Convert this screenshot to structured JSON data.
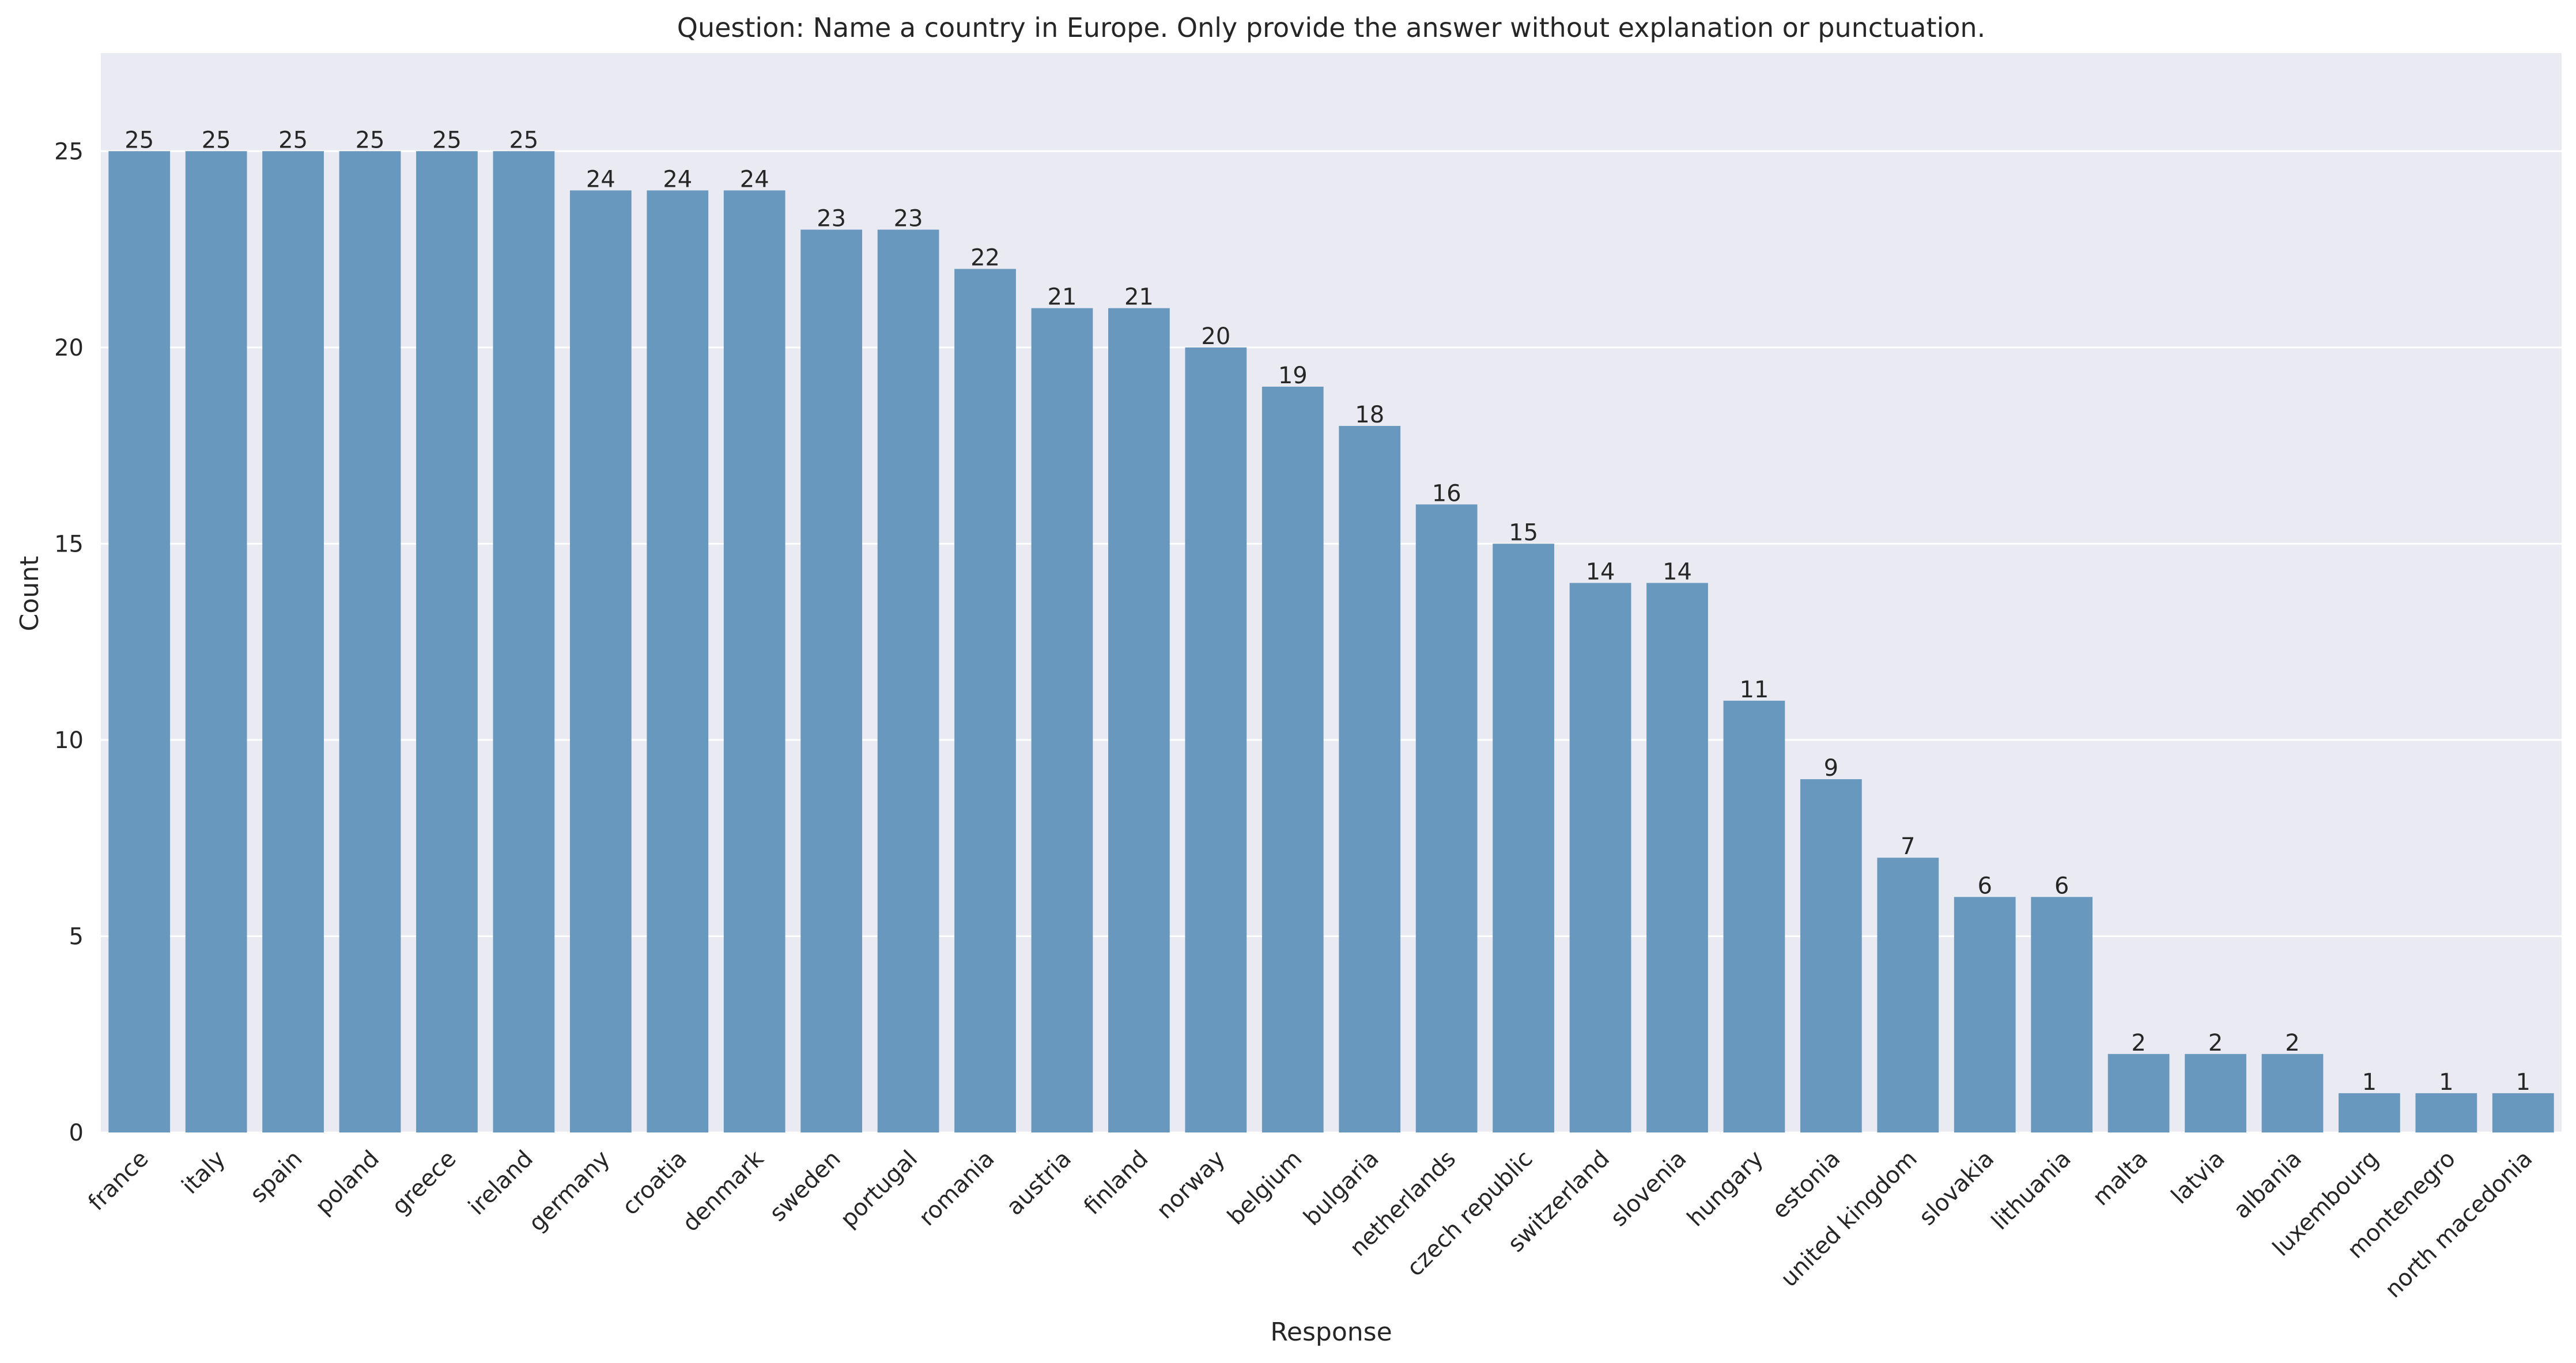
{
  "chart_data": {
    "type": "bar",
    "title": "Question: Name a country in Europe. Only provide the answer without explanation or punctuation.",
    "xlabel": "Response",
    "ylabel": "Count",
    "ylim": [
      0,
      27.5
    ],
    "yticks": [
      0,
      5,
      10,
      15,
      20,
      25
    ],
    "grid": true,
    "legend": "none",
    "bar_color": "#6998be",
    "background_color": "#eaeaf2",
    "categories": [
      "france",
      "italy",
      "spain",
      "poland",
      "greece",
      "ireland",
      "germany",
      "croatia",
      "denmark",
      "sweden",
      "portugal",
      "romania",
      "austria",
      "finland",
      "norway",
      "belgium",
      "bulgaria",
      "netherlands",
      "czech republic",
      "switzerland",
      "slovenia",
      "hungary",
      "estonia",
      "united kingdom",
      "slovakia",
      "lithuania",
      "malta",
      "latvia",
      "albania",
      "luxembourg",
      "montenegro",
      "north macedonia"
    ],
    "values": [
      25,
      25,
      25,
      25,
      25,
      25,
      24,
      24,
      24,
      23,
      23,
      22,
      21,
      21,
      20,
      19,
      18,
      16,
      15,
      14,
      14,
      11,
      9,
      7,
      6,
      6,
      2,
      2,
      2,
      1,
      1,
      1
    ]
  }
}
